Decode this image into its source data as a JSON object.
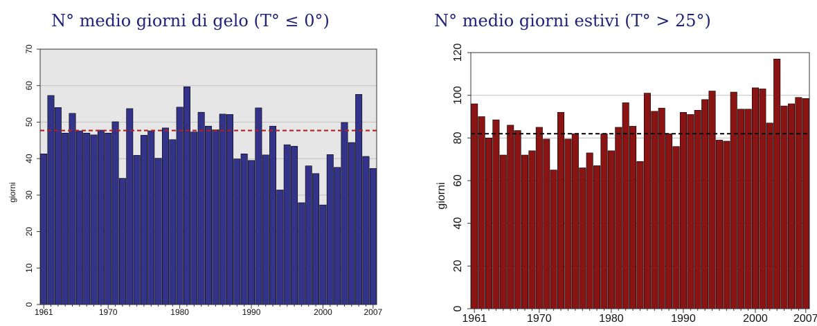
{
  "chart_data": [
    {
      "type": "bar",
      "title": "N° medio giorni di gelo (T° ≤ 0°)",
      "xlabel": "",
      "ylabel": "giorni",
      "ylim": [
        0,
        70
      ],
      "yticks": [
        "0",
        "10",
        "20",
        "30",
        "40",
        "50",
        "60",
        "70"
      ],
      "xtick_labels": [
        "1961",
        "1970",
        "1980",
        "1990",
        "2000",
        "2007"
      ],
      "x": [
        1961,
        1962,
        1963,
        1964,
        1965,
        1966,
        1967,
        1968,
        1969,
        1970,
        1971,
        1972,
        1973,
        1974,
        1975,
        1976,
        1977,
        1978,
        1979,
        1980,
        1981,
        1982,
        1983,
        1984,
        1985,
        1986,
        1987,
        1988,
        1989,
        1990,
        1991,
        1992,
        1993,
        1994,
        1995,
        1996,
        1997,
        1998,
        1999,
        2000,
        2001,
        2002,
        2003,
        2004,
        2005,
        2006,
        2007
      ],
      "values": [
        41.3,
        57.3,
        54.0,
        47.0,
        52.4,
        47.6,
        47.0,
        46.5,
        47.8,
        47.0,
        50.1,
        34.6,
        53.7,
        40.9,
        46.4,
        47.6,
        40.1,
        48.4,
        45.2,
        54.1,
        59.7,
        47.3,
        52.7,
        48.9,
        47.9,
        52.2,
        52.1,
        39.9,
        41.3,
        39.5,
        53.9,
        41.0,
        48.9,
        31.4,
        43.8,
        43.4,
        27.9,
        38.0,
        35.9,
        27.3,
        41.1,
        37.6,
        49.9,
        44.4,
        57.6,
        40.6,
        37.3
      ],
      "mean": 47.7,
      "bar_color": "#33338a",
      "mean_line_color": "#b02020",
      "background": "#e6e6e6",
      "grid": true
    },
    {
      "type": "bar",
      "title": "N° medio giorni estivi (T° > 25°)",
      "xlabel": "",
      "ylabel": "giorni",
      "ylim": [
        0,
        120
      ],
      "yticks": [
        "0",
        "20",
        "40",
        "60",
        "80",
        "100",
        "120"
      ],
      "xtick_labels": [
        "1961",
        "1970",
        "1980",
        "1990",
        "2000",
        "2007"
      ],
      "x": [
        1961,
        1962,
        1963,
        1964,
        1965,
        1966,
        1967,
        1968,
        1969,
        1970,
        1971,
        1972,
        1973,
        1974,
        1975,
        1976,
        1977,
        1978,
        1979,
        1980,
        1981,
        1982,
        1983,
        1984,
        1985,
        1986,
        1987,
        1988,
        1989,
        1990,
        1991,
        1992,
        1993,
        1994,
        1995,
        1996,
        1997,
        1998,
        1999,
        2000,
        2001,
        2002,
        2003,
        2004,
        2005,
        2006,
        2007
      ],
      "values": [
        96,
        90,
        80,
        88.5,
        72,
        86,
        83.5,
        72,
        74,
        85,
        79.5,
        65,
        92,
        79.5,
        82,
        66,
        73,
        67,
        82,
        74,
        85,
        96.5,
        85.5,
        69,
        101,
        92.5,
        94,
        82,
        76,
        92,
        91,
        93,
        98,
        102,
        79,
        78.5,
        101.5,
        93.5,
        93.5,
        103.5,
        103,
        87,
        117,
        95,
        96,
        99,
        98.5
      ],
      "mean": 82,
      "bar_color": "#8a1414",
      "mean_line_color": "#111111",
      "background": "#ffffff",
      "grid": true
    }
  ]
}
